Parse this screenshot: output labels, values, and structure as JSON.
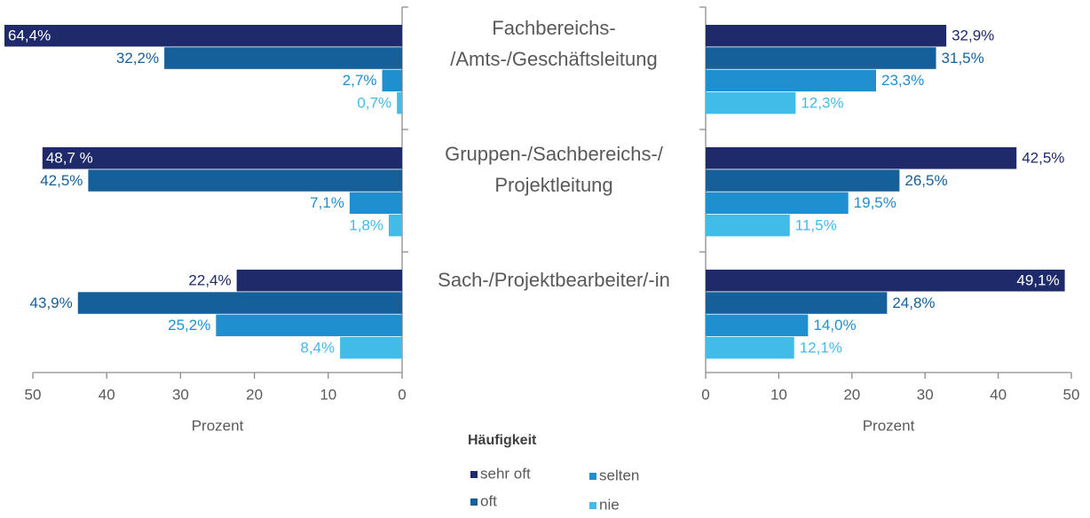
{
  "chart_data": [
    {
      "type": "bar",
      "orientation": "horizontal",
      "categories": [
        [
          "Fachbereichs-",
          "/Amts-/Geschäftsleitung"
        ],
        [
          "Gruppen-/Sachbereichs-/",
          "Projektleitung"
        ],
        [
          "Sach-/Projektbearbeiter/-in"
        ]
      ],
      "series": [
        {
          "name": "sehr oft",
          "color": "#1f2a6b",
          "values": [
            64.4,
            48.7,
            22.4
          ],
          "value_labels": [
            "64,4%",
            "48,7 %",
            "22,4%"
          ]
        },
        {
          "name": "oft",
          "color": "#15609a",
          "values": [
            32.2,
            42.5,
            43.9
          ],
          "value_labels": [
            "32,2%",
            "42,5%",
            "43,9%"
          ]
        },
        {
          "name": "selten",
          "color": "#1f8fcf",
          "values": [
            2.7,
            7.1,
            25.2
          ],
          "value_labels": [
            "2,7%",
            "7,1%",
            "25,2%"
          ]
        },
        {
          "name": "nie",
          "color": "#41bce8",
          "values": [
            0.7,
            1.8,
            8.4
          ],
          "value_labels": [
            "0,7%",
            "1,8%",
            "8,4%"
          ]
        }
      ],
      "xlim": [
        50,
        0
      ],
      "xticks": [
        50,
        40,
        30,
        20,
        10,
        0
      ],
      "xlabel": "Prozent",
      "legend": {
        "title": "Häufigkeit"
      }
    },
    {
      "type": "bar",
      "orientation": "horizontal",
      "series": [
        {
          "color": "#1f2a6b",
          "values": [
            32.9,
            42.5,
            49.1
          ],
          "value_labels": [
            "32,9%",
            "42,5%",
            "49,1%"
          ]
        },
        {
          "color": "#15609a",
          "values": [
            31.5,
            26.5,
            24.8
          ],
          "value_labels": [
            "31,5%",
            "26,5%",
            "24,8%"
          ]
        },
        {
          "color": "#1f8fcf",
          "values": [
            23.3,
            19.5,
            14.0
          ],
          "value_labels": [
            "23,3%",
            "19,5%",
            "14,0%"
          ]
        },
        {
          "color": "#41bce8",
          "values": [
            12.3,
            11.5,
            12.1
          ],
          "value_labels": [
            "12,3%",
            "11,5%",
            "12,1%"
          ]
        }
      ],
      "xlim": [
        0,
        50
      ],
      "xticks": [
        0,
        10,
        20,
        30,
        40,
        50
      ],
      "xlabel": "Prozent"
    }
  ]
}
